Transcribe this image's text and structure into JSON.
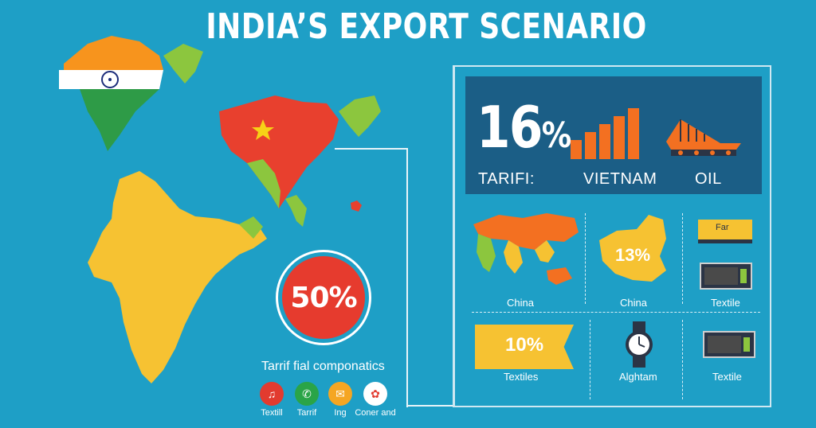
{
  "title": "INDIA’S EXPORT SCENARIO",
  "panel": {
    "headline_value": "16",
    "headline_unit": "%",
    "labels": [
      "TARIFI:",
      "VIETNAM",
      "OIL"
    ]
  },
  "grid": {
    "row1": [
      {
        "label": "China"
      },
      {
        "label": "China",
        "value": "13%"
      },
      {
        "label": "Textile",
        "device_text": "Far"
      }
    ],
    "row2": [
      {
        "label": "Textiles",
        "value": "10%"
      },
      {
        "label": "Alghtam"
      },
      {
        "label": "Textile"
      }
    ]
  },
  "callout": {
    "value": "50%",
    "caption": "Tarrif fial componatics"
  },
  "icons": [
    {
      "name": "music-icon",
      "label": "Textill",
      "color": "#e23b2f"
    },
    {
      "name": "phone-icon",
      "label": "Tarrif",
      "color": "#2aa447"
    },
    {
      "name": "chat-icon",
      "label": "Ing",
      "color": "#f5a623"
    },
    {
      "name": "flower-icon",
      "label": "Coner and",
      "color": "#ffffff"
    }
  ],
  "colors": {
    "background": "#1e9fc6",
    "panel": "#1b5e86",
    "orange": "#f37021",
    "yellow": "#f6c232",
    "green": "#8cc63e",
    "red": "#e63b2e"
  }
}
